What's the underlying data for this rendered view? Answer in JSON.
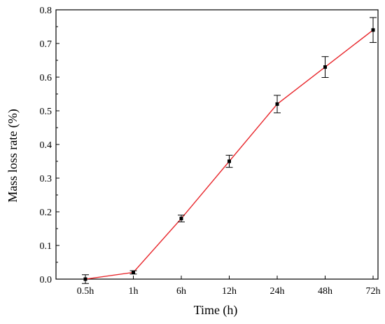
{
  "chart_data": {
    "type": "line",
    "title": "",
    "xlabel": "Time (h)",
    "ylabel": "Mass loss rate (%)",
    "categories": [
      "0.5h",
      "1h",
      "6h",
      "12h",
      "24h",
      "48h",
      "72h"
    ],
    "series": [
      {
        "values": [
          0.0,
          0.02,
          0.18,
          0.35,
          0.52,
          0.63,
          0.74
        ],
        "errors": [
          0.013,
          0.005,
          0.01,
          0.018,
          0.026,
          0.031,
          0.037
        ],
        "line_color": "#e8262b",
        "marker_color": "#000000"
      }
    ],
    "ylim": [
      0,
      0.8
    ],
    "yticks": [
      "0.0",
      "0.1",
      "0.2",
      "0.3",
      "0.4",
      "0.5",
      "0.6",
      "0.7",
      "0.8"
    ],
    "grid": false,
    "legend": "none"
  }
}
